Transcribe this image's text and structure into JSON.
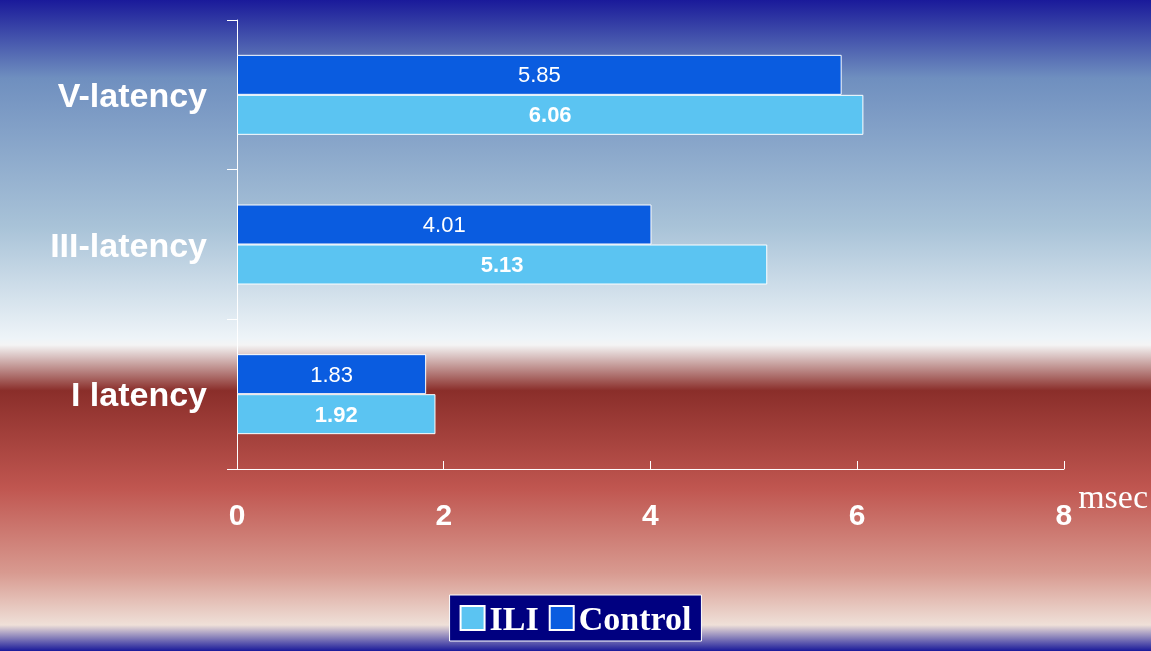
{
  "chart_data": {
    "type": "bar",
    "orientation": "horizontal",
    "categories": [
      "V-latency",
      "III-latency",
      "I latency"
    ],
    "series": [
      {
        "name": "ILI",
        "color": "#5bc4f2",
        "values": [
          6.06,
          5.13,
          1.92
        ]
      },
      {
        "name": "Control",
        "color": "#0a5ce0",
        "values": [
          5.85,
          4.01,
          1.83
        ]
      }
    ],
    "xlim": [
      0,
      8
    ],
    "xticks": [
      0,
      2,
      4,
      6,
      8
    ],
    "xlabel": "msec",
    "data_labels": true,
    "legend": "bottom",
    "grid": false
  }
}
